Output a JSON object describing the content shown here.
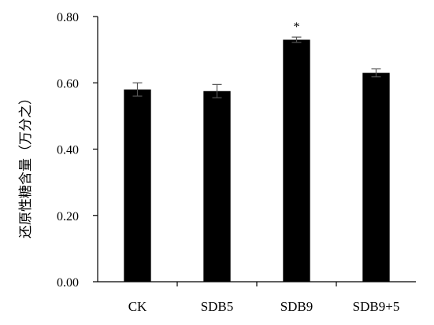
{
  "chart_data": {
    "type": "bar",
    "title": "",
    "xlabel": "",
    "ylabel": "还原性糖含量（万分之）",
    "categories": [
      "CK",
      "SDB5",
      "SDB9",
      "SDB9+5"
    ],
    "values": [
      0.58,
      0.575,
      0.73,
      0.63
    ],
    "errors": [
      0.02,
      0.02,
      0.008,
      0.012
    ],
    "annotations": [
      "",
      "",
      "*",
      ""
    ],
    "ylim": [
      0.0,
      0.8
    ],
    "yticks": [
      "0.00",
      "0.20",
      "0.40",
      "0.60",
      "0.80"
    ],
    "grid": false,
    "bar_color": "#000000"
  }
}
